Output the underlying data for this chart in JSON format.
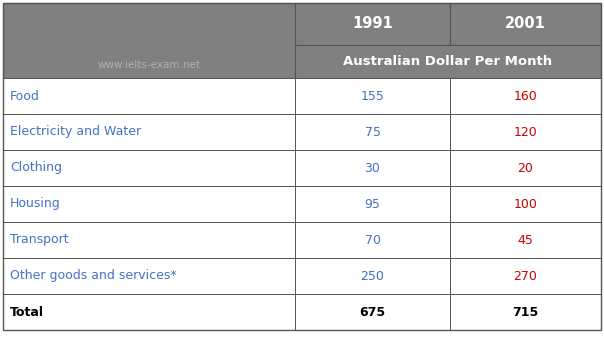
{
  "header_bg_color": "#808080",
  "header_text_color": "#ffffff",
  "subheader_bg_color": "#808080",
  "row_bg_color": "#ffffff",
  "category_text_color": "#4472c4",
  "value_1991_color": "#4472c4",
  "value_2001_color": "#cc0000",
  "total_text_color": "#000000",
  "border_color": "#555555",
  "watermark_color": "#b0b0b0",
  "col2_header": "1991",
  "col3_header": "2001",
  "subheader_span": "Australian Dollar Per Month",
  "watermark": "www.ielts-exam.net",
  "categories": [
    "Food",
    "Electricity and Water",
    "Clothing",
    "Housing",
    "Transport",
    "Other goods and services*"
  ],
  "values_1991": [
    155,
    75,
    30,
    95,
    70,
    250
  ],
  "values_2001": [
    160,
    120,
    20,
    100,
    45,
    270
  ],
  "total_1991": 675,
  "total_2001": 715,
  "figsize": [
    6.04,
    3.59
  ],
  "dpi": 100
}
